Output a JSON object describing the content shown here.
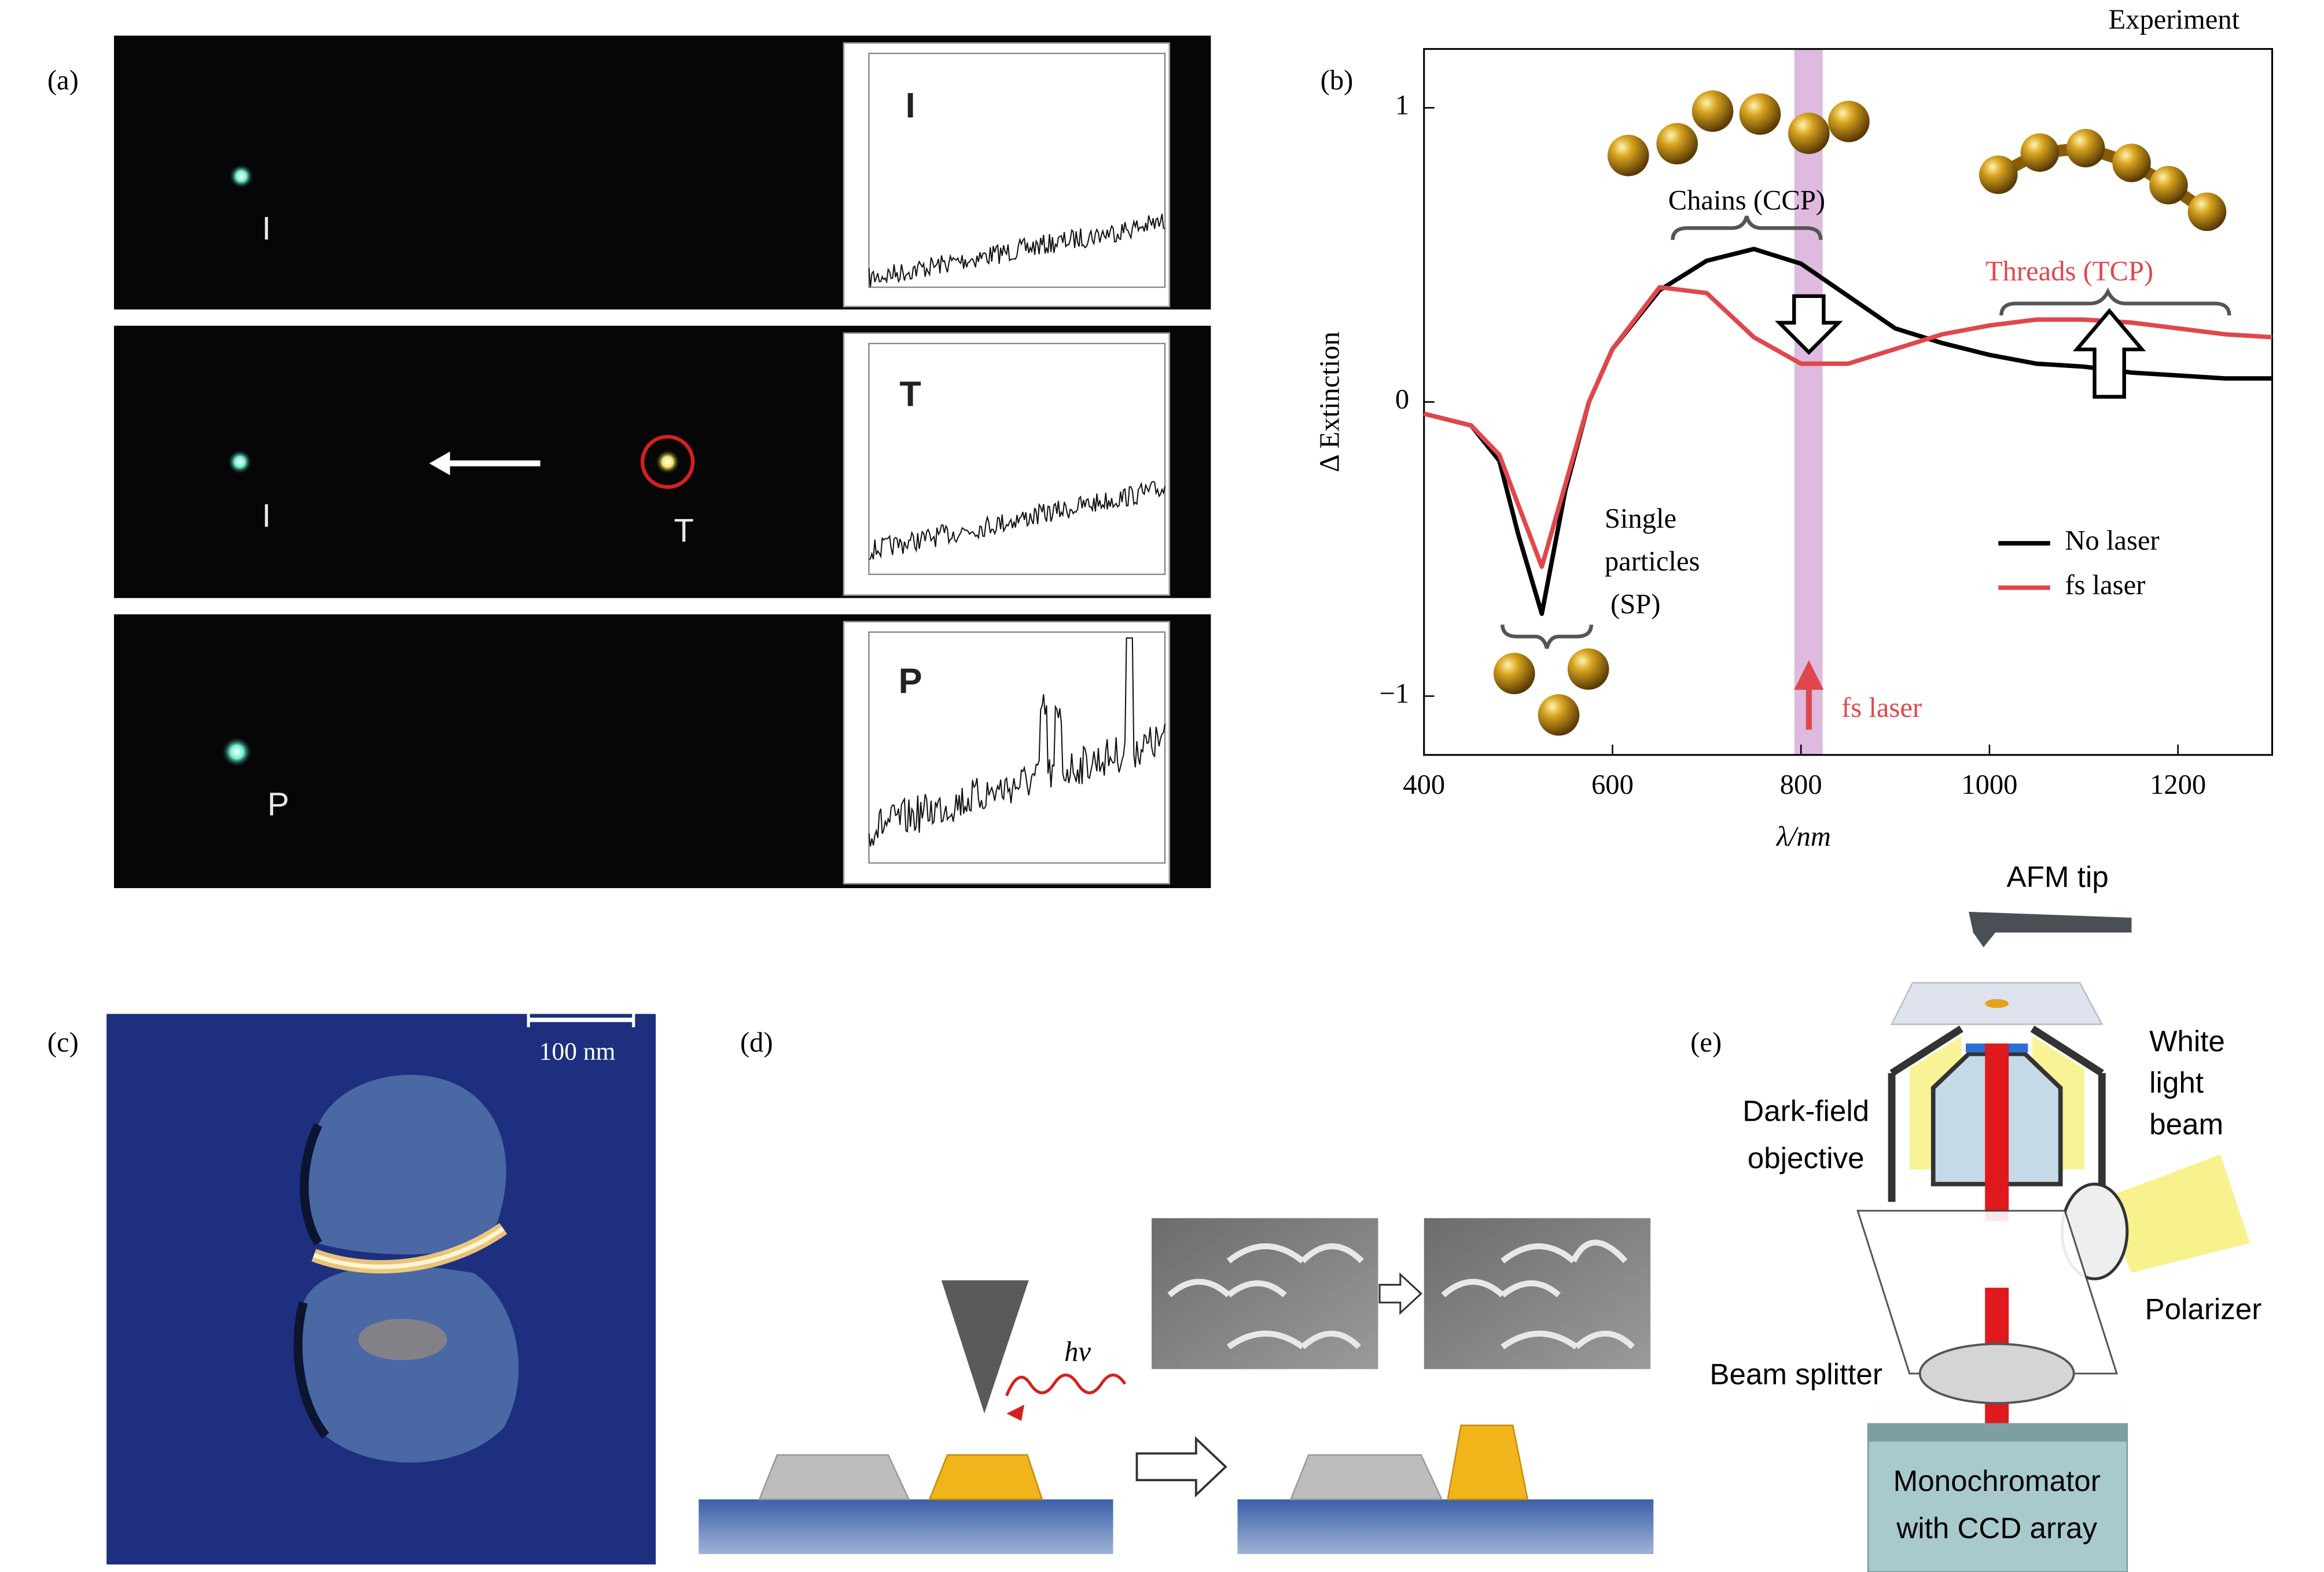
{
  "panel_labels": [
    "(a)",
    "(b)",
    "(c)",
    "(d)",
    "(e)"
  ],
  "panel_a": {
    "frames": [
      {
        "spots": [
          "I"
        ],
        "inset": "I"
      },
      {
        "spots": [
          "I",
          "T"
        ],
        "inset": "T"
      },
      {
        "spots": [
          "P"
        ],
        "inset": "P"
      }
    ]
  },
  "chart_data": {
    "type": "line",
    "xlabel": "λ/nm",
    "ylabel": "Δ Extinction",
    "annotations": {
      "top_right": "Experiment",
      "chains": "Chains (CCP)",
      "threads": "Threads (TCP)",
      "single": [
        "Single",
        "particles",
        "(SP)"
      ],
      "laser": "fs laser"
    },
    "x": [
      400,
      450,
      480,
      500,
      525,
      550,
      575,
      600,
      650,
      700,
      750,
      800,
      850,
      900,
      950,
      1000,
      1050,
      1100,
      1150,
      1200,
      1250,
      1300
    ],
    "series": [
      {
        "name": "No laser",
        "color": "#000000",
        "values": [
          -0.04,
          -0.08,
          -0.2,
          -0.45,
          -0.72,
          -0.3,
          0.0,
          0.18,
          0.38,
          0.48,
          0.52,
          0.47,
          0.36,
          0.25,
          0.2,
          0.16,
          0.13,
          0.12,
          0.1,
          0.09,
          0.08,
          0.08
        ]
      },
      {
        "name": "fs laser",
        "color": "#e0474c",
        "values": [
          -0.04,
          -0.08,
          -0.18,
          -0.35,
          -0.56,
          -0.28,
          0.0,
          0.18,
          0.39,
          0.37,
          0.22,
          0.13,
          0.13,
          0.18,
          0.23,
          0.26,
          0.28,
          0.28,
          0.27,
          0.25,
          0.23,
          0.22
        ]
      }
    ],
    "xlim": [
      400,
      1300
    ],
    "ylim": [
      -1.2,
      1.2
    ],
    "xticks": [
      400,
      600,
      800,
      1000,
      1200
    ],
    "yticks": [
      {
        "value": -1,
        "label": "−1"
      },
      0,
      1
    ],
    "highlight": [
      793,
      823
    ],
    "highlight_color": "#d7aed8",
    "legend": "center right"
  },
  "panel_c": {
    "scale_bar": "100 nm"
  },
  "panel_d": {
    "photon": "hν"
  },
  "panel_e": {
    "afm_tip": "AFM tip",
    "white_light": [
      "White",
      "light",
      "beam"
    ],
    "objective": [
      "Dark-field",
      "objective"
    ],
    "polarizer": "Polarizer",
    "beam_splitter": "Beam splitter",
    "detector": [
      "Monochromator",
      "with CCD array"
    ]
  }
}
